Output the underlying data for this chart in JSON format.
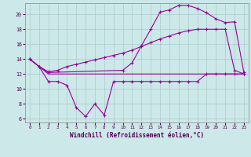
{
  "background_color": "#cce8e8",
  "grid_color": "#aacccc",
  "line_color": "#990099",
  "xlabel": "Windchill (Refroidissement éolien,°C)",
  "xlim": [
    -0.5,
    23.5
  ],
  "ylim": [
    5.5,
    21.5
  ],
  "yticks": [
    6,
    8,
    10,
    12,
    14,
    16,
    18,
    20
  ],
  "xticks": [
    0,
    1,
    2,
    3,
    4,
    5,
    6,
    7,
    8,
    9,
    10,
    11,
    12,
    13,
    14,
    15,
    16,
    17,
    18,
    19,
    20,
    21,
    22,
    23
  ],
  "series1_x": [
    0,
    1,
    2,
    3,
    4,
    5,
    6,
    7,
    8,
    9,
    10,
    11,
    12,
    13,
    14,
    15,
    16,
    17,
    18,
    19,
    20,
    21,
    22,
    23
  ],
  "series1_y": [
    14,
    13,
    11,
    11,
    10.5,
    7.5,
    6.3,
    8.0,
    6.5,
    11,
    11,
    11,
    11,
    11,
    11,
    11,
    11,
    11,
    11,
    12,
    12,
    12,
    12,
    12
  ],
  "series2_x": [
    0,
    1,
    2,
    3,
    4,
    5,
    6,
    7,
    8,
    9,
    10,
    11,
    12,
    13,
    14,
    15,
    16,
    17,
    18,
    19,
    20,
    21,
    22,
    23
  ],
  "series2_y": [
    14,
    13,
    12.3,
    12.5,
    13.0,
    13.3,
    13.6,
    13.9,
    14.2,
    14.5,
    14.8,
    15.2,
    15.7,
    16.2,
    16.7,
    17.1,
    17.5,
    17.8,
    18.0,
    18.0,
    18.0,
    18.0,
    12.5,
    12
  ],
  "series3_x": [
    0,
    1,
    2,
    10,
    11,
    12,
    13,
    14,
    15,
    16,
    17,
    18,
    19,
    20,
    21,
    22,
    23
  ],
  "series3_y": [
    14,
    13,
    12.2,
    12.5,
    13.5,
    15.8,
    18.0,
    20.3,
    20.6,
    21.2,
    21.2,
    20.8,
    20.2,
    19.4,
    18.9,
    19.0,
    12.2
  ],
  "series4_x": [
    0,
    1,
    2,
    3,
    4,
    5,
    6,
    7,
    8,
    9,
    10,
    11,
    12,
    13,
    14,
    15,
    16,
    17,
    18,
    19,
    20,
    21,
    22,
    23
  ],
  "series4_y": [
    14,
    13,
    12,
    12,
    12,
    12,
    12,
    12,
    12,
    12,
    12,
    12,
    12,
    12,
    12,
    12,
    12,
    12,
    12,
    12,
    12,
    12,
    12,
    12
  ]
}
